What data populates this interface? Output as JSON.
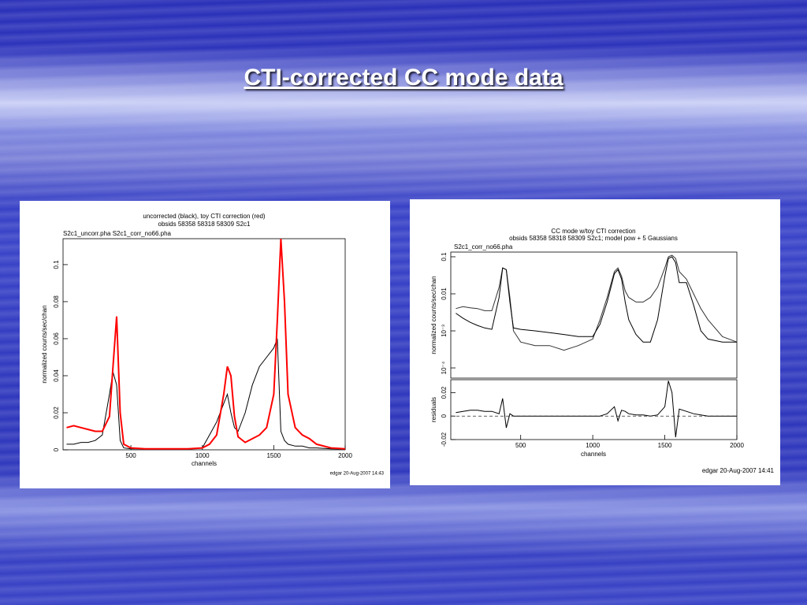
{
  "slide_title": "CTI-corrected CC mode data",
  "chart_data": [
    {
      "type": "line",
      "title": "uncorrected (black), toy CTI correction (red)",
      "subtitle": "obsids 58358 58318 58309 S2c1",
      "annotations": [
        "S2c1_uncorr.pha S2c1_corr_no66.pha",
        "edgar 20-Aug-2007 14:43"
      ],
      "x_label": "channels",
      "y_label": "normalized counts/sec/chan",
      "x": [
        50,
        100,
        150,
        200,
        250,
        300,
        350,
        375,
        400,
        425,
        450,
        500,
        600,
        700,
        800,
        900,
        1000,
        1050,
        1100,
        1150,
        1175,
        1200,
        1225,
        1250,
        1300,
        1350,
        1400,
        1450,
        1500,
        1525,
        1550,
        1575,
        1600,
        1650,
        1700,
        1750,
        1800,
        1900,
        2000
      ],
      "series": [
        {
          "name": "uncorrected",
          "color": "#000000",
          "values": [
            0.003,
            0.003,
            0.004,
            0.004,
            0.005,
            0.008,
            0.03,
            0.042,
            0.035,
            0.005,
            0.001,
            0.0005,
            0.0005,
            0.0005,
            0.0005,
            0.0005,
            0.001,
            0.008,
            0.015,
            0.025,
            0.03,
            0.02,
            0.012,
            0.01,
            0.02,
            0.035,
            0.045,
            0.05,
            0.055,
            0.06,
            0.01,
            0.005,
            0.003,
            0.002,
            0.002,
            0.001,
            0.001,
            0.0005,
            0.0003
          ]
        },
        {
          "name": "toy CTI correction",
          "color": "#ff0000",
          "values": [
            0.012,
            0.013,
            0.012,
            0.011,
            0.01,
            0.01,
            0.018,
            0.045,
            0.072,
            0.02,
            0.003,
            0.001,
            0.0005,
            0.0005,
            0.0005,
            0.0005,
            0.001,
            0.003,
            0.008,
            0.03,
            0.045,
            0.04,
            0.018,
            0.007,
            0.004,
            0.006,
            0.008,
            0.012,
            0.03,
            0.07,
            0.114,
            0.08,
            0.03,
            0.012,
            0.008,
            0.006,
            0.003,
            0.001,
            0.0005
          ]
        }
      ],
      "xlim": [
        25,
        2000
      ],
      "xticks": [
        500,
        1000,
        1500,
        2000
      ],
      "ylim": [
        0,
        0.114
      ],
      "yticks": [
        0,
        0.02,
        0.04,
        0.06,
        0.08,
        0.1
      ]
    },
    {
      "type": "line",
      "title": "CC mode w/toy CTI correction",
      "subtitle": "obsids 58358 58318 58309 S2c1; model pow + 5 Gaussians",
      "annotations": [
        "S2c1_corr_no66.pha"
      ],
      "y_label": "normalized counts/sec/chan",
      "log_y": true,
      "x": [
        50,
        100,
        150,
        200,
        250,
        300,
        350,
        375,
        400,
        425,
        450,
        500,
        600,
        700,
        800,
        900,
        1000,
        1050,
        1100,
        1150,
        1175,
        1200,
        1225,
        1250,
        1300,
        1350,
        1400,
        1450,
        1500,
        1525,
        1550,
        1575,
        1600,
        1650,
        1700,
        1750,
        1800,
        1900,
        2000
      ],
      "series": [
        {
          "name": "data",
          "color": "#333333",
          "values": [
            0.004,
            0.0045,
            0.0042,
            0.004,
            0.0035,
            0.0035,
            0.015,
            0.05,
            0.045,
            0.008,
            0.001,
            0.0005,
            0.0004,
            0.0004,
            0.0003,
            0.0004,
            0.0006,
            0.002,
            0.008,
            0.04,
            0.05,
            0.03,
            0.012,
            0.008,
            0.006,
            0.006,
            0.008,
            0.015,
            0.05,
            0.1,
            0.11,
            0.09,
            0.04,
            0.025,
            0.01,
            0.004,
            0.002,
            0.0007,
            0.0005
          ]
        },
        {
          "name": "model",
          "color": "#000000",
          "values": [
            0.003,
            0.0022,
            0.0017,
            0.0014,
            0.0012,
            0.0011,
            0.008,
            0.05,
            0.045,
            0.006,
            0.0012,
            0.0011,
            0.001,
            0.0009,
            0.0008,
            0.0007,
            0.0007,
            0.0015,
            0.006,
            0.035,
            0.045,
            0.025,
            0.006,
            0.002,
            0.0008,
            0.0005,
            0.0005,
            0.002,
            0.03,
            0.09,
            0.1,
            0.07,
            0.02,
            0.02,
            0.005,
            0.001,
            0.0006,
            0.0005,
            0.0005
          ]
        }
      ],
      "xlim": [
        15,
        2000
      ],
      "ylim": [
        5.3e-05,
        0.134
      ],
      "yticks": [
        {
          "value": 0.0001,
          "label": "10⁻⁴"
        },
        {
          "value": 0.001,
          "label": "10⁻³"
        },
        0.01,
        0.1
      ]
    },
    {
      "type": "line",
      "annotations": [
        "edgar 20-Aug-2007 14:41"
      ],
      "x_label": "channels",
      "y_label": "residuals",
      "x": [
        50,
        100,
        150,
        200,
        250,
        300,
        350,
        375,
        400,
        425,
        450,
        500,
        600,
        700,
        800,
        900,
        1000,
        1050,
        1100,
        1150,
        1175,
        1200,
        1225,
        1250,
        1300,
        1350,
        1400,
        1450,
        1500,
        1525,
        1550,
        1575,
        1600,
        1650,
        1700,
        1750,
        1800,
        1900,
        2000
      ],
      "series": [
        {
          "name": "residuals",
          "color": "#000000",
          "values": [
            0.003,
            0.004,
            0.005,
            0.005,
            0.004,
            0.004,
            0.002,
            0.015,
            -0.01,
            0.002,
            0,
            0,
            0,
            0,
            0,
            0,
            0,
            0,
            0.002,
            0.008,
            -0.004,
            0.005,
            0.004,
            0.002,
            0.001,
            0.001,
            0,
            0.001,
            0.008,
            0.03,
            0.02,
            -0.018,
            0.006,
            0.004,
            0.002,
            0.001,
            0,
            0,
            0
          ]
        }
      ],
      "xlim": [
        15,
        2000
      ],
      "xticks": [
        500,
        1000,
        1500,
        2000
      ],
      "ylim": [
        -0.02,
        0.031
      ],
      "yticks": [
        -0.02,
        0,
        0.02
      ]
    }
  ]
}
